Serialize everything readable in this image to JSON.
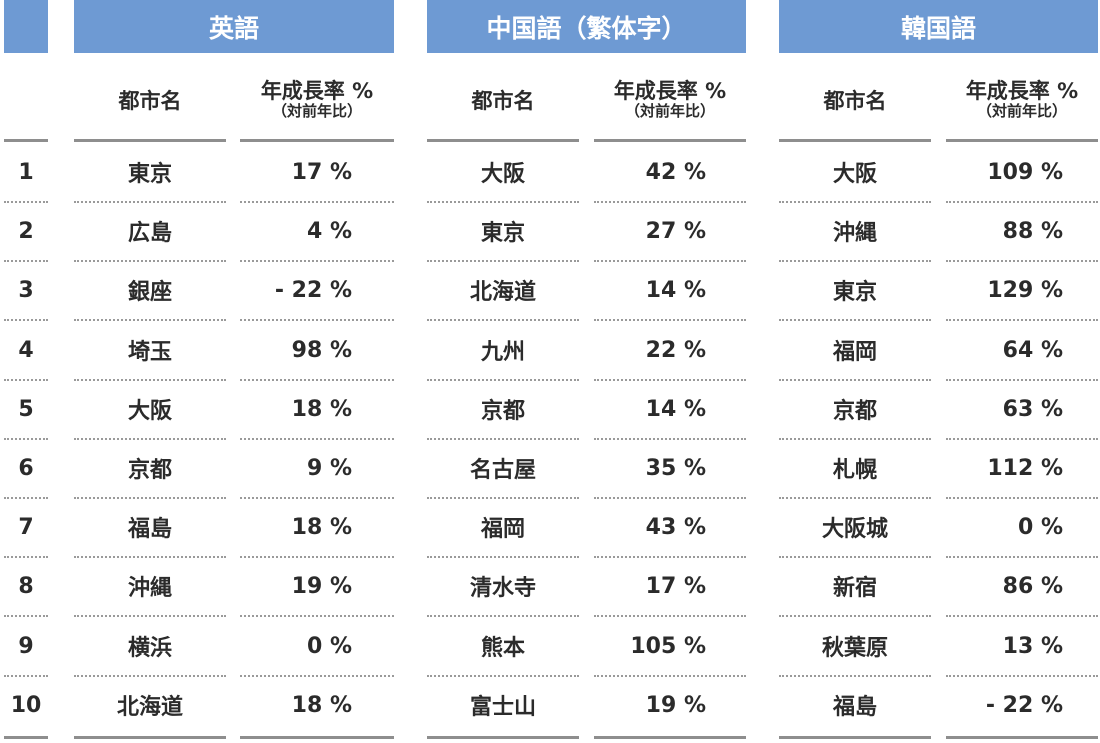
{
  "languages": [
    {
      "name": "英語",
      "city_header": "都市名",
      "rate_header": "年成長率 %",
      "rate_subheader": "（対前年比）",
      "rows": [
        {
          "city": "東京",
          "rate": "17 %"
        },
        {
          "city": "広島",
          "rate": "4 %"
        },
        {
          "city": "銀座",
          "rate": "- 22 %"
        },
        {
          "city": "埼玉",
          "rate": "98 %"
        },
        {
          "city": "大阪",
          "rate": "18 %"
        },
        {
          "city": "京都",
          "rate": "9 %"
        },
        {
          "city": "福島",
          "rate": "18 %"
        },
        {
          "city": "沖縄",
          "rate": "19 %"
        },
        {
          "city": "横浜",
          "rate": "0 %"
        },
        {
          "city": "北海道",
          "rate": "18 %"
        }
      ]
    },
    {
      "name": "中国語（繁体字）",
      "city_header": "都市名",
      "rate_header": "年成長率 %",
      "rate_subheader": "（対前年比）",
      "rows": [
        {
          "city": "大阪",
          "rate": "42 %"
        },
        {
          "city": "東京",
          "rate": "27 %"
        },
        {
          "city": "北海道",
          "rate": "14 %"
        },
        {
          "city": "九州",
          "rate": "22 %"
        },
        {
          "city": "京都",
          "rate": "14 %"
        },
        {
          "city": "名古屋",
          "rate": "35 %"
        },
        {
          "city": "福岡",
          "rate": "43 %"
        },
        {
          "city": "清水寺",
          "rate": "17 %"
        },
        {
          "city": "熊本",
          "rate": "105 %"
        },
        {
          "city": "富士山",
          "rate": "19 %"
        }
      ]
    },
    {
      "name": "韓国語",
      "city_header": "都市名",
      "rate_header": "年成長率 %",
      "rate_subheader": "（対前年比）",
      "rows": [
        {
          "city": "大阪",
          "rate": "109 %"
        },
        {
          "city": "沖縄",
          "rate": "88 %"
        },
        {
          "city": "東京",
          "rate": "129 %"
        },
        {
          "city": "福岡",
          "rate": "64 %"
        },
        {
          "city": "京都",
          "rate": "63 %"
        },
        {
          "city": "札幌",
          "rate": "112 %"
        },
        {
          "city": "大阪城",
          "rate": "0 %"
        },
        {
          "city": "新宿",
          "rate": "86 %"
        },
        {
          "city": "秋葉原",
          "rate": "13 %"
        },
        {
          "city": "福島",
          "rate": "- 22 %"
        }
      ]
    }
  ],
  "ranks": [
    "1",
    "2",
    "3",
    "4",
    "5",
    "6",
    "7",
    "8",
    "9",
    "10"
  ],
  "colors": {
    "header_band": "#6e9ad3",
    "rule": "#8e8e8e",
    "text": "#2b2b2b"
  }
}
